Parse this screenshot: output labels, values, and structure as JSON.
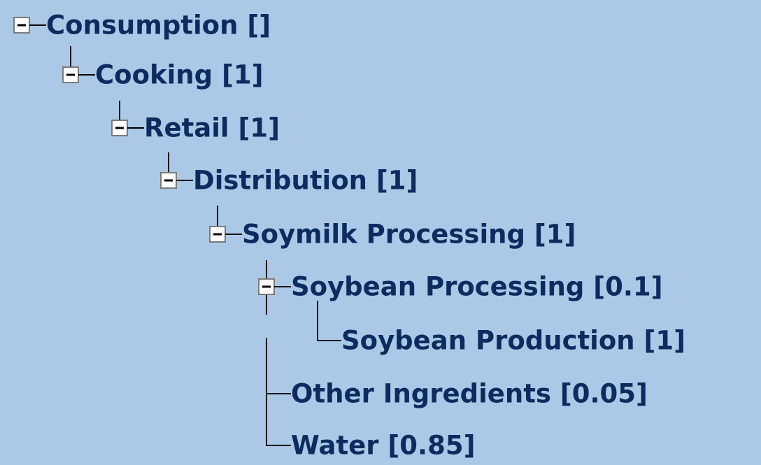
{
  "tree": {
    "nodes": [
      {
        "label": "Consumption []"
      },
      {
        "label": "Cooking [1]"
      },
      {
        "label": "Retail [1]"
      },
      {
        "label": "Distribution [1]"
      },
      {
        "label": "Soymilk Processing [1]"
      },
      {
        "label": "Soybean Processing [0.1]"
      },
      {
        "label": "Soybean Production [1]"
      },
      {
        "label": "Other Ingredients [0.05]"
      },
      {
        "label": "Water [0.85]"
      }
    ]
  }
}
